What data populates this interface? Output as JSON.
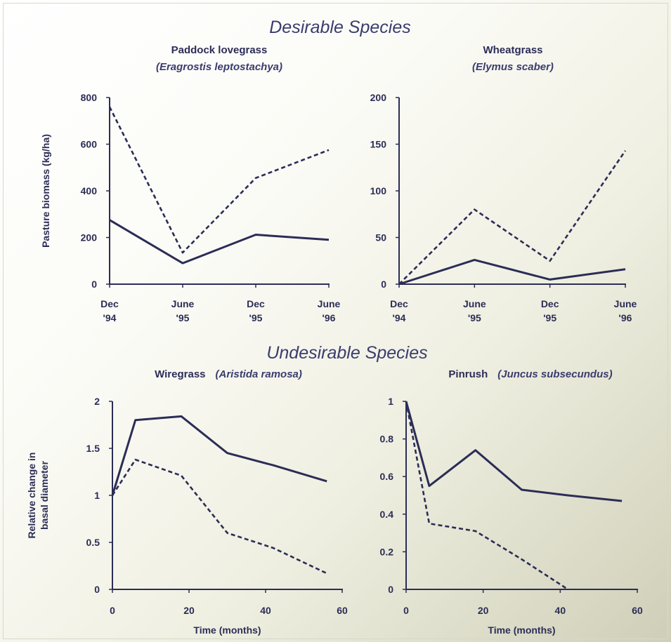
{
  "sections": {
    "desirable": "Desirable Species",
    "undesirable": "Undesirable Species"
  },
  "colors": {
    "ink": "#2b2d56",
    "title_ink": "#3a3d6e"
  },
  "chart_data": [
    {
      "id": "paddock",
      "type": "line",
      "title": "Paddock lovegrass",
      "subtitle": "(Eragrostis leptostachya)",
      "ylabel": "Pasture biomass (kg/ha)",
      "xlabel": "",
      "ylim": [
        0,
        800
      ],
      "yticks": [
        0,
        200,
        400,
        600,
        800
      ],
      "categories": [
        "Dec '94",
        "June '95",
        "Dec '95",
        "June '96"
      ],
      "xtick_lines": [
        [
          "Dec",
          "'94"
        ],
        [
          "June",
          "'95"
        ],
        [
          "Dec",
          "'95"
        ],
        [
          "June",
          "'96"
        ]
      ],
      "series": [
        {
          "style": "solid",
          "values": [
            275,
            90,
            212,
            190
          ]
        },
        {
          "style": "dashed",
          "values": [
            760,
            135,
            455,
            575
          ]
        }
      ]
    },
    {
      "id": "wheatgrass",
      "type": "line",
      "title": "Wheatgrass",
      "subtitle": "(Elymus scaber)",
      "ylabel": "",
      "xlabel": "",
      "ylim": [
        0,
        200
      ],
      "yticks": [
        0,
        50,
        100,
        150,
        200
      ],
      "categories": [
        "Dec '94",
        "June '95",
        "Dec '95",
        "June '96"
      ],
      "xtick_lines": [
        [
          "Dec",
          "'94"
        ],
        [
          "June",
          "'95"
        ],
        [
          "Dec",
          "'95"
        ],
        [
          "June",
          "'96"
        ]
      ],
      "series": [
        {
          "style": "solid",
          "values": [
            0,
            26,
            5,
            16
          ]
        },
        {
          "style": "dashed",
          "values": [
            0,
            80,
            25,
            143
          ]
        }
      ]
    },
    {
      "id": "wiregrass",
      "type": "line",
      "title": "Wiregrass",
      "subtitle": "(Aristida ramosa)",
      "ylabel": "Relative change in basal diameter",
      "ylabel_lines": [
        "Relative change in",
        "basal diameter"
      ],
      "xlabel": "Time (months)",
      "xlim": [
        0,
        60
      ],
      "xticks": [
        0,
        20,
        40,
        60
      ],
      "ylim": [
        0,
        2
      ],
      "yticks": [
        0,
        0.5,
        1,
        1.5,
        2
      ],
      "series": [
        {
          "style": "solid",
          "x": [
            0,
            6,
            18,
            30,
            42,
            56
          ],
          "y": [
            1.0,
            1.8,
            1.84,
            1.45,
            1.32,
            1.15
          ]
        },
        {
          "style": "dashed",
          "x": [
            0,
            6,
            18,
            30,
            42,
            56
          ],
          "y": [
            1.0,
            1.38,
            1.21,
            0.6,
            0.44,
            0.17
          ]
        }
      ]
    },
    {
      "id": "pinrush",
      "type": "line",
      "title": "Pinrush",
      "subtitle": "(Juncus subsecundus)",
      "ylabel": "",
      "xlabel": "Time (months)",
      "xlim": [
        0,
        60
      ],
      "xticks": [
        0,
        20,
        40,
        60
      ],
      "ylim": [
        0,
        1
      ],
      "yticks": [
        0,
        0.2,
        0.4,
        0.6,
        0.8,
        1
      ],
      "series": [
        {
          "style": "solid",
          "x": [
            0,
            6,
            18,
            30,
            42,
            56
          ],
          "y": [
            1.0,
            0.55,
            0.74,
            0.53,
            0.5,
            0.47
          ]
        },
        {
          "style": "dashed",
          "x": [
            0,
            6,
            18,
            30,
            42
          ],
          "y": [
            1.0,
            0.35,
            0.31,
            0.16,
            0.0
          ]
        }
      ]
    }
  ]
}
